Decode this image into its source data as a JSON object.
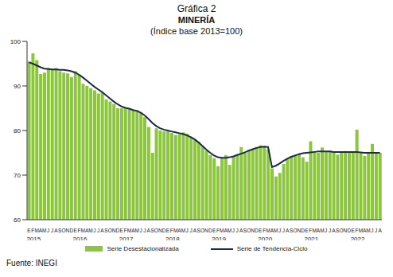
{
  "chart_data": {
    "type": "bar",
    "title": "Gráfica 2",
    "subtitle": "MINERÍA",
    "annotations": [
      "(Índice base 2013=100)",
      "Fuente: INEGI"
    ],
    "categories": [
      "E",
      "F",
      "M",
      "A",
      "M",
      "J",
      "J",
      "A",
      "S",
      "O",
      "N",
      "D",
      "E",
      "F",
      "M",
      "A",
      "M",
      "J",
      "J",
      "A",
      "S",
      "O",
      "N",
      "D",
      "E",
      "F",
      "M",
      "A",
      "M",
      "J",
      "J",
      "A",
      "S",
      "O",
      "N",
      "D",
      "E",
      "F",
      "M",
      "A",
      "M",
      "J",
      "J",
      "A",
      "S",
      "O",
      "N",
      "D",
      "E",
      "F",
      "M",
      "A",
      "M",
      "J",
      "J",
      "A",
      "S",
      "O",
      "N",
      "D",
      "E",
      "F",
      "M",
      "A",
      "M",
      "J",
      "J",
      "A",
      "S",
      "O",
      "N",
      "D",
      "E",
      "F",
      "M",
      "A",
      "M",
      "J",
      "J",
      "A",
      "S",
      "O",
      "N",
      "D",
      "E",
      "F",
      "M",
      "A",
      "M",
      "J",
      "J",
      "A"
    ],
    "years": [
      "2015",
      null,
      null,
      null,
      null,
      null,
      null,
      null,
      null,
      null,
      null,
      null,
      "2016",
      null,
      null,
      null,
      null,
      null,
      null,
      null,
      null,
      null,
      null,
      null,
      "2017",
      null,
      null,
      null,
      null,
      null,
      null,
      null,
      null,
      null,
      null,
      null,
      "2018",
      null,
      null,
      null,
      null,
      null,
      null,
      null,
      null,
      null,
      null,
      null,
      "2019",
      null,
      null,
      null,
      null,
      null,
      null,
      null,
      null,
      null,
      null,
      null,
      "2020",
      null,
      null,
      null,
      null,
      null,
      null,
      null,
      null,
      null,
      null,
      null,
      "2021",
      null,
      null,
      null,
      null,
      null,
      null,
      null,
      null,
      null,
      null,
      null,
      "2022",
      null,
      null,
      null,
      null,
      null,
      null,
      null
    ],
    "series": [
      {
        "name": "Serie Desestacionalizada",
        "type": "bar",
        "color": "#8cc63f",
        "values": [
          95.5,
          97.3,
          95.8,
          92.7,
          93.0,
          94.0,
          93.8,
          94.0,
          93.3,
          93.0,
          92.8,
          92.0,
          93.3,
          92.6,
          90.5,
          90.0,
          89.5,
          89.0,
          88.3,
          88.5,
          87.0,
          86.5,
          86.0,
          85.0,
          85.0,
          85.2,
          84.8,
          84.6,
          84.6,
          84.0,
          83.0,
          80.8,
          75.0,
          80.5,
          80.0,
          79.8,
          79.8,
          79.5,
          79.0,
          79.2,
          79.6,
          79.3,
          78.6,
          78.0,
          77.5,
          76.5,
          75.5,
          74.5,
          73.8,
          72.0,
          73.8,
          74.5,
          72.3,
          74.2,
          74.7,
          76.3,
          75.0,
          75.5,
          75.8,
          76.3,
          76.7,
          76.5,
          75.8,
          71.5,
          69.7,
          70.5,
          72.5,
          73.8,
          74.3,
          74.5,
          74.8,
          74.0,
          73.0,
          77.6,
          75.2,
          75.0,
          76.2,
          75.3,
          75.5,
          75.2,
          74.6,
          75.3,
          75.4,
          75.0,
          75.2,
          80.2,
          75.0,
          74.3,
          75.2,
          77.0,
          75.0,
          75.0
        ]
      },
      {
        "name": "Serie de Tendencia-Ciclo",
        "type": "line",
        "color": "#1c2b4a",
        "values": [
          95.3,
          95.0,
          94.6,
          94.2,
          93.9,
          93.8,
          93.7,
          93.7,
          93.6,
          93.6,
          93.5,
          93.3,
          93.0,
          92.5,
          91.9,
          91.2,
          90.5,
          89.8,
          89.2,
          88.6,
          87.9,
          87.2,
          86.5,
          85.9,
          85.4,
          85.1,
          84.9,
          84.6,
          84.4,
          84.0,
          83.4,
          82.6,
          81.7,
          81.0,
          80.5,
          80.2,
          80.0,
          79.8,
          79.6,
          79.4,
          79.2,
          78.9,
          78.5,
          78.0,
          77.3,
          76.5,
          75.7,
          75.0,
          74.4,
          74.0,
          73.9,
          73.9,
          74.0,
          74.2,
          74.5,
          74.8,
          75.1,
          75.5,
          75.8,
          76.1,
          76.3,
          76.4,
          76.3,
          71.8,
          72.1,
          72.6,
          73.2,
          73.7,
          74.1,
          74.4,
          74.7,
          74.9,
          75.0,
          75.1,
          75.2,
          75.3,
          75.3,
          75.3,
          75.3,
          75.2,
          75.2,
          75.2,
          75.2,
          75.2,
          75.2,
          75.2,
          75.1,
          75.0,
          75.0,
          75.0,
          75.0,
          75.0
        ]
      }
    ],
    "ylim": [
      60,
      100
    ],
    "yticks": [
      60,
      70,
      80,
      90,
      100
    ],
    "grid": false,
    "legend": "bottom"
  }
}
